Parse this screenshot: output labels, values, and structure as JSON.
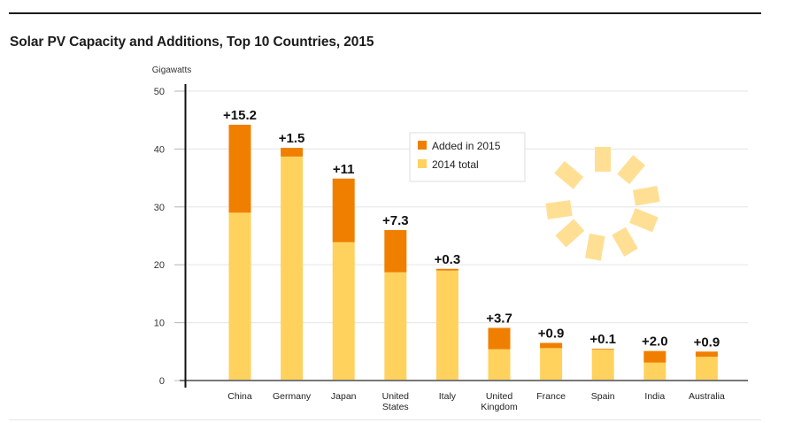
{
  "chart_data": {
    "type": "bar",
    "stacked": true,
    "title": "Solar PV Capacity and Additions, Top 10 Countries, 2015",
    "ylabel": "Gigawatts",
    "xlabel": "",
    "ylim": [
      0,
      50
    ],
    "yticks": [
      0,
      10,
      20,
      30,
      40,
      50
    ],
    "grid": true,
    "legend_position": "top-center",
    "categories": [
      [
        "China"
      ],
      [
        "Germany"
      ],
      [
        "Japan"
      ],
      [
        "United",
        "States"
      ],
      [
        "Italy"
      ],
      [
        "United",
        "Kingdom"
      ],
      [
        "France"
      ],
      [
        "Spain"
      ],
      [
        "India"
      ],
      [
        "Australia"
      ]
    ],
    "series": [
      {
        "name": "2014 total",
        "color": "#FFD25E",
        "values": [
          29.0,
          38.7,
          23.9,
          18.7,
          19.0,
          5.4,
          5.6,
          5.4,
          3.1,
          4.1
        ]
      },
      {
        "name": "Added in 2015",
        "color": "#F07F00",
        "values": [
          15.2,
          1.5,
          11.0,
          7.3,
          0.3,
          3.7,
          0.9,
          0.1,
          2.0,
          0.9
        ]
      }
    ],
    "data_labels": [
      "+15.2",
      "+1.5",
      "+11",
      "+7.3",
      "+0.3",
      "+3.7",
      "+0.9",
      "+0.1",
      "+2.0",
      "+0.9"
    ],
    "legend": [
      "Added in 2015",
      "2014 total"
    ],
    "decoration": {
      "icon": "sun-icon",
      "color": "#FFDF94"
    }
  }
}
